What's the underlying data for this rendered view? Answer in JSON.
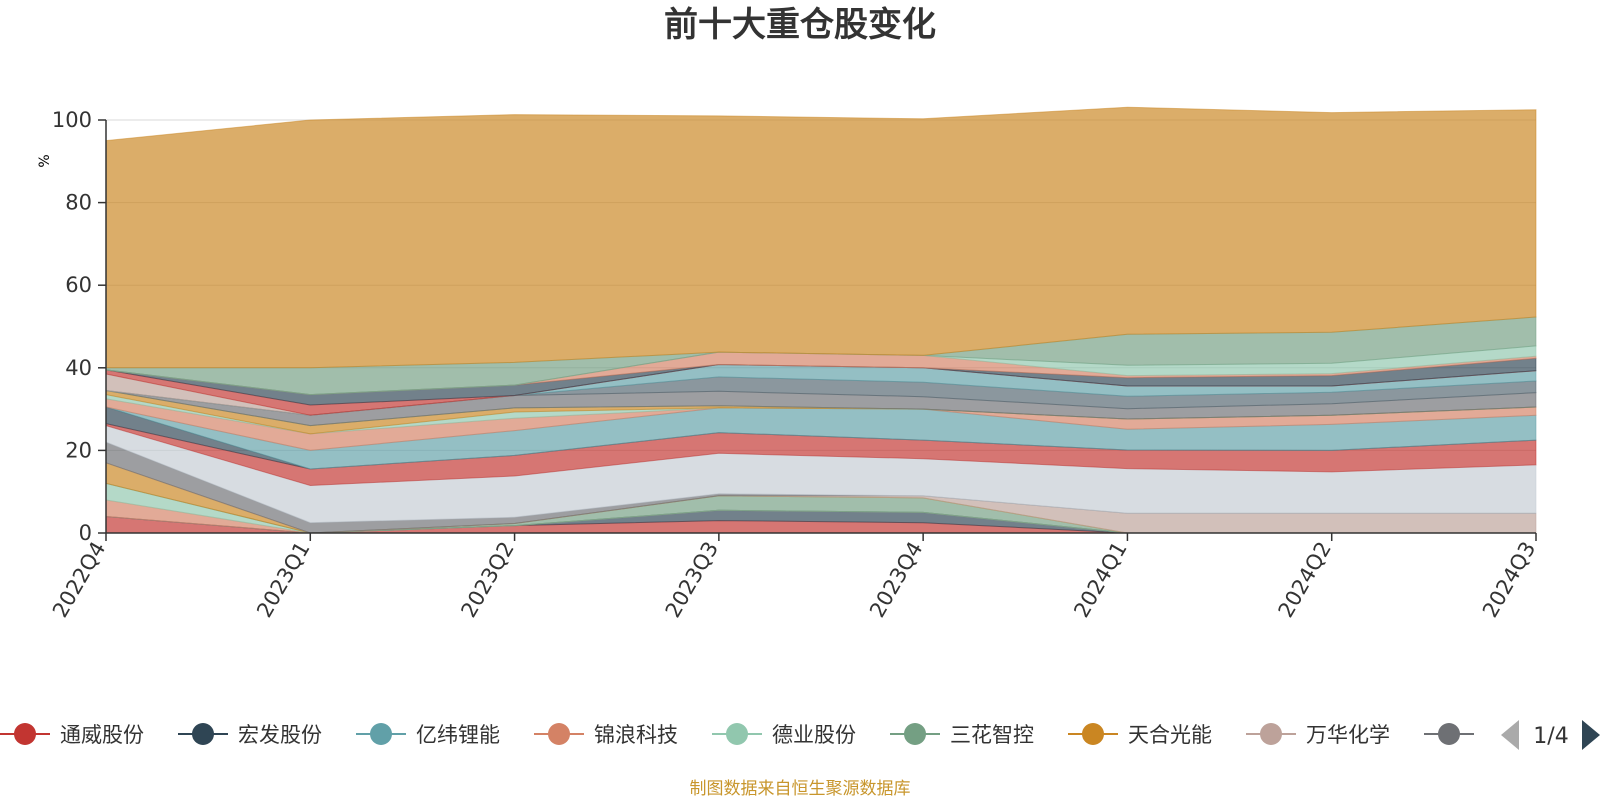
{
  "chart_data": {
    "type": "area",
    "stacked": true,
    "title": "前十大重仓股变化",
    "ylabel": "%",
    "ylim": [
      0,
      100
    ],
    "yticks": [
      "0",
      "20",
      "40",
      "60",
      "80",
      "100"
    ],
    "grid": true,
    "categories": [
      "2022Q4",
      "2023Q1",
      "2023Q2",
      "2023Q3",
      "2023Q4",
      "2024Q1",
      "2024Q2",
      "2024Q3"
    ],
    "series": [
      {
        "name": "通威股份",
        "color": "#c23531",
        "values": [
          4.0,
          0,
          1.8,
          3.0,
          2.5,
          0,
          0,
          0
        ]
      },
      {
        "name": "宏发股份",
        "color": "#2f4554",
        "values": [
          0,
          0,
          0,
          2.5,
          2.5,
          0,
          0,
          0
        ]
      },
      {
        "name": "亿纬锂能",
        "color": "#61a0a8",
        "values": [
          0,
          0,
          0,
          0,
          0,
          0,
          0,
          0
        ]
      },
      {
        "name": "锦浪科技",
        "color": "#d48265",
        "values": [
          4.0,
          0,
          0,
          0,
          0,
          0,
          0,
          0
        ]
      },
      {
        "name": "德业股份",
        "color": "#91c7ae",
        "values": [
          4.0,
          0,
          0,
          0,
          0,
          0,
          0,
          0
        ]
      },
      {
        "name": "三花智控",
        "color": "#749f83",
        "values": [
          0,
          0,
          0.5,
          3.5,
          3.5,
          0,
          0,
          0
        ]
      },
      {
        "name": "天合光能",
        "color": "#ca8622",
        "values": [
          5.0,
          0,
          0,
          0,
          0,
          0,
          0,
          0
        ]
      },
      {
        "name": "万华化学",
        "color": "#bda29a",
        "values": [
          0,
          0,
          0,
          0,
          0.5,
          4.8,
          4.8,
          4.8
        ]
      },
      {
        "name": "",
        "color": "#6e7074",
        "values": [
          5.0,
          2.5,
          1.5,
          0.5,
          0,
          0,
          0,
          0
        ]
      },
      {
        "name": "",
        "color": "#c4ccd3",
        "values": [
          4.0,
          9.0,
          10.0,
          9.8,
          9.0,
          10.8,
          10.0,
          11.7
        ]
      },
      {
        "name": "",
        "color": "#c23531",
        "values": [
          0.5,
          4.0,
          5.0,
          5.0,
          4.5,
          4.5,
          5.2,
          6.0
        ]
      },
      {
        "name": "",
        "color": "#2f4554",
        "values": [
          4.0,
          0,
          0,
          0,
          0,
          0,
          0,
          0
        ]
      },
      {
        "name": "",
        "color": "#61a0a8",
        "values": [
          0,
          4.5,
          6.0,
          6.0,
          7.5,
          5.0,
          6.3,
          6.0
        ]
      },
      {
        "name": "",
        "color": "#d48265",
        "values": [
          2.0,
          4.0,
          3.0,
          0,
          0,
          2.5,
          2.2,
          2.0
        ]
      },
      {
        "name": "",
        "color": "#91c7ae",
        "values": [
          1.0,
          0,
          1.5,
          0,
          0,
          0,
          0,
          0
        ]
      },
      {
        "name": "",
        "color": "#ca8622",
        "values": [
          1.0,
          2.0,
          1.0,
          0.5,
          0,
          0,
          0,
          0
        ]
      },
      {
        "name": "",
        "color": "#749f83",
        "values": [
          0,
          0,
          0,
          0,
          0,
          0,
          0,
          0
        ]
      },
      {
        "name": "",
        "color": "#6e7074",
        "values": [
          0,
          2.5,
          3.0,
          3.5,
          3.0,
          2.5,
          2.8,
          3.5
        ]
      },
      {
        "name": "",
        "color": "#546570",
        "values": [
          0,
          0,
          0,
          3.5,
          3.5,
          3.0,
          2.8,
          2.8
        ]
      },
      {
        "name": "",
        "color": "#61a0a8",
        "values": [
          0,
          0,
          0,
          3.0,
          3.5,
          2.5,
          1.5,
          2.5
        ]
      },
      {
        "name": "",
        "color": "#bda29a",
        "values": [
          4.0,
          0,
          0,
          0,
          0,
          0,
          0,
          0
        ]
      },
      {
        "name": "",
        "color": "#c23531",
        "values": [
          1.0,
          2.5,
          0,
          0,
          0,
          0,
          0,
          0
        ]
      },
      {
        "name": "",
        "color": "#2f4554",
        "values": [
          0,
          2.5,
          2.5,
          0,
          0,
          2.0,
          2.5,
          3.0
        ]
      },
      {
        "name": "",
        "color": "#d48265",
        "values": [
          0,
          0,
          0,
          3.0,
          3.0,
          0.5,
          0.5,
          0.5
        ]
      },
      {
        "name": "",
        "color": "#91c7ae",
        "values": [
          0,
          0,
          0,
          0,
          0,
          2.5,
          2.5,
          2.5
        ]
      },
      {
        "name": "",
        "color": "#749f83",
        "values": [
          0.5,
          6.5,
          5.5,
          0,
          0,
          7.5,
          7.5,
          7.0
        ]
      },
      {
        "name": "",
        "color": "#ca8622",
        "values": [
          55.0,
          60.0,
          60.0,
          57.2,
          57.3,
          55.0,
          53.2,
          50.2
        ]
      }
    ]
  },
  "legend": {
    "items": [
      {
        "label": "通威股份",
        "color": "#c23531"
      },
      {
        "label": "宏发股份",
        "color": "#2f4554"
      },
      {
        "label": "亿纬锂能",
        "color": "#61a0a8"
      },
      {
        "label": "锦浪科技",
        "color": "#d48265"
      },
      {
        "label": "德业股份",
        "color": "#91c7ae"
      },
      {
        "label": "三花智控",
        "color": "#749f83"
      },
      {
        "label": "天合光能",
        "color": "#ca8622"
      },
      {
        "label": "万华化学",
        "color": "#bda29a"
      },
      {
        "label": "",
        "color": "#6e7074"
      }
    ],
    "pager": "1/4"
  },
  "source_note": "制图数据来自恒生聚源数据库",
  "colors": {
    "axis": "#333333",
    "grid": "#d9d9d9",
    "unit": "#e03030",
    "source": "#c8962c",
    "pager_inactive": "#aaaaaa",
    "pager_active": "#2f4554"
  }
}
